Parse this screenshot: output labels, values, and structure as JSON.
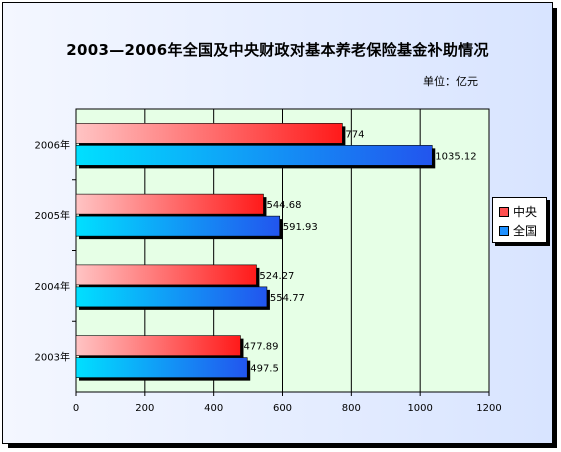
{
  "chart_data": {
    "type": "bar",
    "orientation": "horizontal",
    "title": "2003—2006年全国及中央财政对基本养老保险基金补助情况",
    "unit_label": "单位：亿元",
    "categories": [
      "2006年",
      "2005年",
      "2004年",
      "2003年"
    ],
    "series": [
      {
        "name": "中央",
        "values": [
          774,
          544.68,
          524.27,
          477.89
        ],
        "color": "#ff3333"
      },
      {
        "name": "全国",
        "values": [
          1035.12,
          591.93,
          554.77,
          497.5
        ],
        "color": "#1e6fff"
      }
    ],
    "data_labels": [
      [
        "774",
        "544.68",
        "524.27",
        "477.89"
      ],
      [
        "1035.12",
        "591.93",
        "554.77",
        "497.5"
      ]
    ],
    "xlim": [
      0,
      1200
    ],
    "x_ticks": [
      "0",
      "200",
      "400",
      "600",
      "800",
      "1000",
      "1200"
    ],
    "grid": true,
    "legend_position": "right",
    "plot_background": "#e6ffe6"
  }
}
